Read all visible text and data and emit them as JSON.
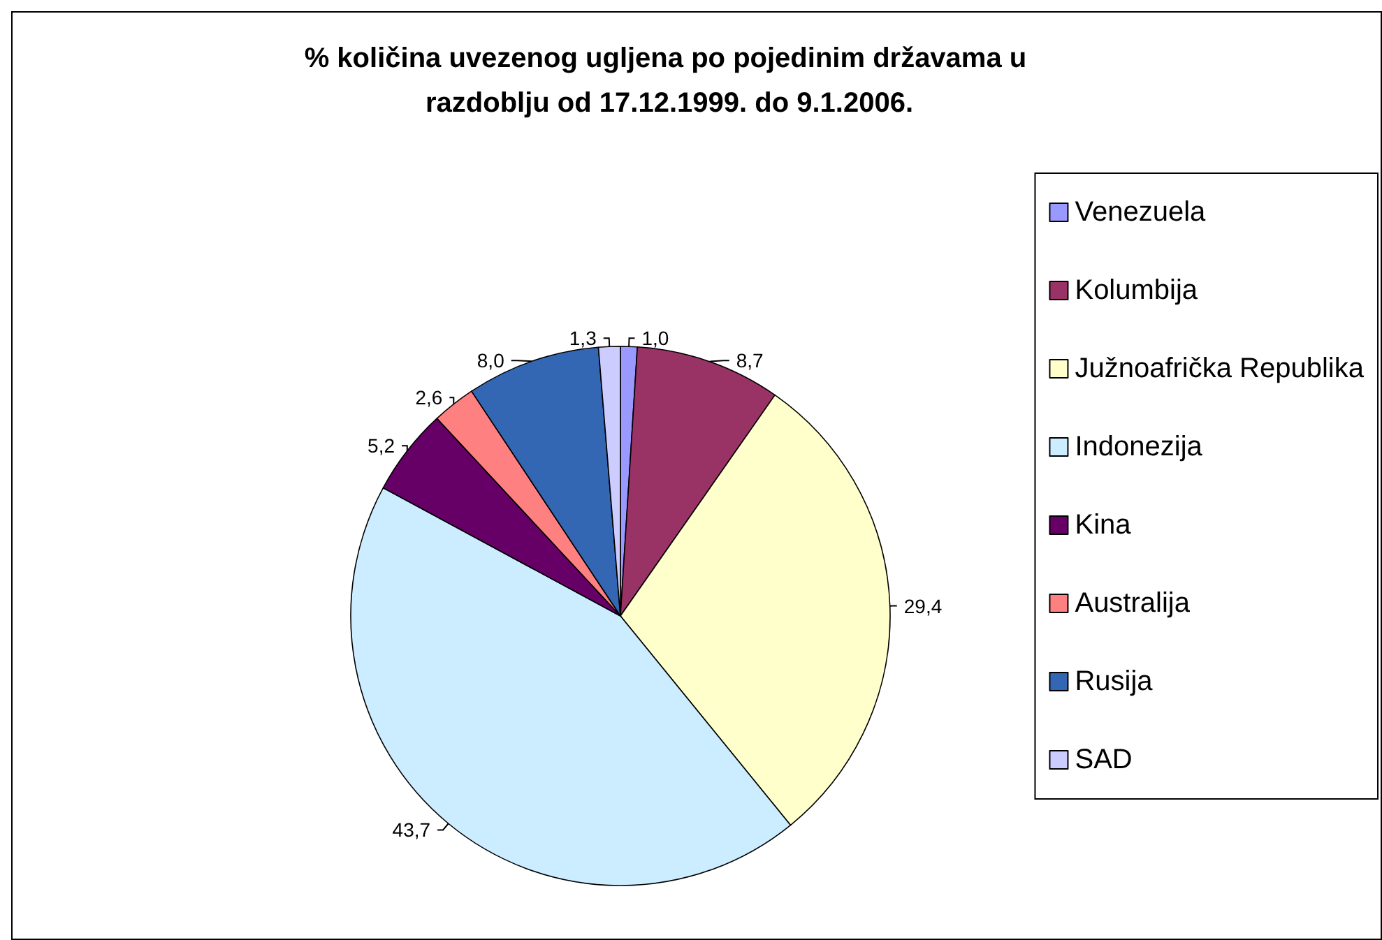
{
  "chart_data": {
    "type": "pie",
    "title": "% količina uvezenog ugljena po pojedinim državama u razdoblju od 17.12.1999. do 9.1.2006.",
    "categories": [
      "Venezuela",
      "Kolumbija",
      "Južnoafrička Republika",
      "Indonezija",
      "Kina",
      "Australija",
      "Rusija",
      "SAD"
    ],
    "values": [
      1.0,
      8.7,
      29.4,
      43.7,
      5.2,
      2.6,
      8.0,
      1.3
    ],
    "value_labels": [
      "1,0",
      "8,7",
      "29,4",
      "43,7",
      "5,2",
      "2,6",
      "8,0",
      "1,3"
    ],
    "colors": [
      "#9999ff",
      "#993366",
      "#ffffcc",
      "#ccecff",
      "#660066",
      "#ff8080",
      "#3366b3",
      "#ccccff"
    ],
    "legend": "right"
  }
}
